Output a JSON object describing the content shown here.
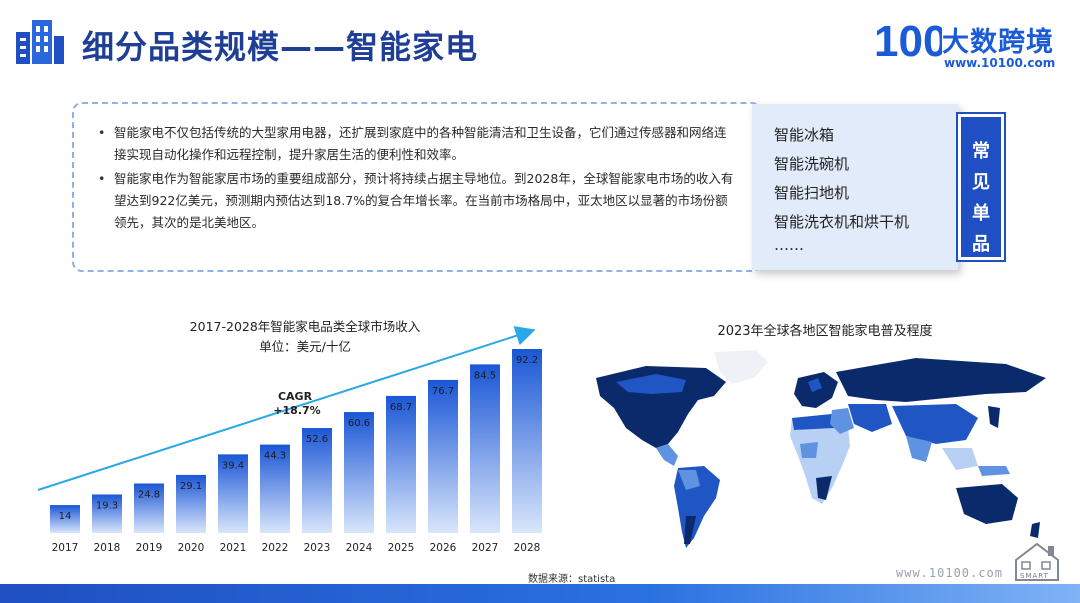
{
  "header": {
    "title": "细分品类规模——智能家电",
    "logo_name": "大数跨境",
    "logo_mark": "100",
    "logo_url": "www.10100.com"
  },
  "description": {
    "bullets": [
      "智能家电不仅包括传统的大型家用电器，还扩展到家庭中的各种智能清洁和卫生设备，它们通过传感器和网络连接实现自动化操作和远程控制，提升家居生活的便利性和效率。",
      "智能家电作为智能家居市场的重要组成部分，预计将持续占据主导地位。到2028年，全球智能家电市场的收入有望达到922亿美元，预测期内预估达到18.7%的复合年增长率。在当前市场格局中，亚太地区以显著的市场份额领先，其次的是北美地区。"
    ]
  },
  "products": {
    "items": [
      "智能冰箱",
      "智能洗碗机",
      "智能扫地机",
      "智能洗衣机和烘干机",
      "……"
    ],
    "tag": [
      "常",
      "见",
      "单",
      "品"
    ]
  },
  "chart_data": {
    "type": "bar",
    "title": "2017-2028年智能家电品类全球市场收入",
    "subtitle": "单位：美元/十亿",
    "categories": [
      "2017",
      "2018",
      "2019",
      "2020",
      "2021",
      "2022",
      "2023",
      "2024",
      "2025",
      "2026",
      "2027",
      "2028"
    ],
    "values": [
      14,
      19.3,
      24.8,
      29.1,
      39.4,
      44.3,
      52.6,
      60.6,
      68.7,
      76.7,
      84.5,
      92.2
    ],
    "ylim": [
      0,
      92.2
    ],
    "annotation": [
      "CAGR",
      "+18.7%"
    ],
    "source": "数据来源：statista",
    "colors": {
      "bar_top": "#1a56d6",
      "bar_bottom": "#d9e6fb",
      "arrow": "#2aa7e6"
    }
  },
  "map": {
    "title": "2023年全球各地区智能家电普及程度",
    "colors": {
      "dark": "#0b2a6b",
      "mid": "#1f56c4",
      "light": "#5f92e0",
      "pale": "#b8d0f3",
      "ice": "#eef2f7"
    }
  },
  "footer": {
    "url": "www.10100.com",
    "house_label": "SMART"
  }
}
